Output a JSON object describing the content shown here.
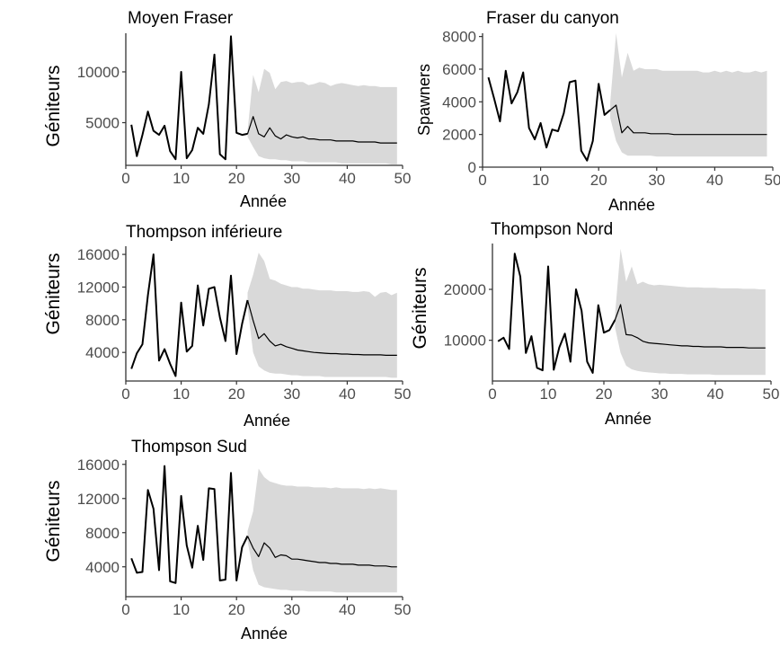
{
  "chart_data": [
    {
      "type": "line",
      "title": "Moyen Fraser",
      "xlabel": "Année",
      "ylabel": "Géniteurs",
      "xlim": [
        0,
        50
      ],
      "ylim": [
        800,
        13800
      ],
      "xticks": [
        "0",
        "10",
        "20",
        "30",
        "40",
        "50"
      ],
      "yticks": [
        "5000",
        "10000"
      ],
      "grid": false,
      "observed": {
        "x": [
          1,
          2,
          3,
          4,
          5,
          6,
          7,
          8,
          9,
          10,
          11,
          12,
          13,
          14,
          15,
          16,
          17,
          18,
          19,
          20,
          21,
          22
        ],
        "y": [
          4800,
          1700,
          3800,
          6100,
          4200,
          3800,
          4700,
          2200,
          1400,
          10000,
          1500,
          2300,
          4500,
          3900,
          6800,
          11700,
          1900,
          1400,
          13500,
          4000,
          3800,
          3900
        ]
      },
      "projection": {
        "x": [
          22,
          23,
          24,
          25,
          26,
          27,
          28,
          29,
          30,
          31,
          32,
          33,
          34,
          35,
          36,
          37,
          38,
          39,
          40,
          41,
          42,
          43,
          44,
          45,
          46,
          47,
          48,
          49
        ],
        "median": [
          3900,
          5600,
          3900,
          3600,
          4500,
          3700,
          3400,
          3800,
          3600,
          3500,
          3600,
          3400,
          3400,
          3300,
          3300,
          3300,
          3200,
          3200,
          3200,
          3200,
          3100,
          3100,
          3100,
          3100,
          3000,
          3000,
          3000,
          3000
        ],
        "lower": [
          3600,
          2600,
          1700,
          1500,
          1400,
          1400,
          1300,
          1300,
          1200,
          1200,
          1200,
          1100,
          1100,
          1100,
          1100,
          1100,
          1100,
          1000,
          1000,
          1000,
          1000,
          1000,
          1000,
          1000,
          1000,
          1000,
          900,
          900
        ],
        "upper": [
          4200,
          9700,
          8000,
          10300,
          9900,
          8300,
          9000,
          9100,
          8900,
          9000,
          9000,
          8700,
          8800,
          9000,
          8900,
          8600,
          8800,
          8900,
          8800,
          8700,
          8600,
          8700,
          8600,
          8600,
          8500,
          8500,
          8500,
          8500
        ]
      }
    },
    {
      "type": "line",
      "title": "Fraser du canyon",
      "xlabel": "Année",
      "ylabel": "Spawners",
      "xlim": [
        0,
        50
      ],
      "ylim": [
        0,
        8200
      ],
      "xticks": [
        "0",
        "10",
        "20",
        "30",
        "40",
        "50"
      ],
      "yticks": [
        "0",
        "2000",
        "4000",
        "6000",
        "8000"
      ],
      "grid": false,
      "observed": {
        "x": [
          1,
          2,
          3,
          4,
          5,
          6,
          7,
          8,
          9,
          10,
          11,
          12,
          13,
          14,
          15,
          16,
          17,
          18,
          19,
          20,
          21,
          22
        ],
        "y": [
          5500,
          4200,
          2800,
          5900,
          3900,
          4600,
          5800,
          2400,
          1700,
          2700,
          1200,
          2300,
          2200,
          3300,
          5200,
          5300,
          1000,
          400,
          1600,
          5100,
          3200,
          3500
        ]
      },
      "projection": {
        "x": [
          22,
          23,
          24,
          25,
          26,
          27,
          28,
          29,
          30,
          31,
          32,
          33,
          34,
          35,
          36,
          37,
          38,
          39,
          40,
          41,
          42,
          43,
          44,
          45,
          46,
          47,
          48,
          49
        ],
        "median": [
          3500,
          3800,
          2100,
          2500,
          2100,
          2100,
          2100,
          2050,
          2050,
          2050,
          2050,
          2000,
          2000,
          2000,
          2000,
          2000,
          2000,
          2000,
          2000,
          2000,
          2000,
          2000,
          2000,
          2000,
          2000,
          2000,
          2000,
          2000
        ],
        "lower": [
          3000,
          1600,
          900,
          700,
          700,
          700,
          700,
          700,
          650,
          650,
          650,
          650,
          650,
          650,
          650,
          650,
          650,
          650,
          650,
          650,
          650,
          650,
          650,
          650,
          650,
          650,
          650,
          650
        ],
        "upper": [
          4000,
          8200,
          5500,
          7000,
          5900,
          6100,
          6000,
          6000,
          6000,
          5900,
          5900,
          5900,
          5900,
          5900,
          5900,
          5900,
          5800,
          5800,
          5900,
          5800,
          5900,
          5800,
          5900,
          5800,
          5800,
          5900,
          5800,
          5900
        ]
      }
    },
    {
      "type": "line",
      "title": "Thompson  inférieure",
      "xlabel": "Année",
      "ylabel": "Géniteurs",
      "xlim": [
        0,
        50
      ],
      "ylim": [
        500,
        17000
      ],
      "xticks": [
        "0",
        "10",
        "20",
        "30",
        "40",
        "50"
      ],
      "yticks": [
        "4000",
        "8000",
        "12000",
        "16000"
      ],
      "grid": false,
      "observed": {
        "x": [
          1,
          2,
          3,
          4,
          5,
          6,
          7,
          8,
          9,
          10,
          11,
          12,
          13,
          14,
          15,
          16,
          17,
          18,
          19,
          20,
          21,
          22
        ],
        "y": [
          2000,
          3900,
          5000,
          11000,
          16000,
          3000,
          4400,
          2600,
          1100,
          10100,
          4100,
          4800,
          12200,
          7300,
          11800,
          12000,
          8300,
          5400,
          13400,
          3800,
          7500,
          10400
        ]
      },
      "projection": {
        "x": [
          22,
          23,
          24,
          25,
          26,
          27,
          28,
          29,
          30,
          31,
          32,
          33,
          34,
          35,
          36,
          37,
          38,
          39,
          40,
          41,
          42,
          43,
          44,
          45,
          46,
          47,
          48,
          49
        ],
        "median": [
          10400,
          7900,
          5700,
          6300,
          5400,
          4800,
          5000,
          4700,
          4500,
          4300,
          4200,
          4100,
          4000,
          3950,
          3900,
          3850,
          3850,
          3800,
          3800,
          3750,
          3750,
          3700,
          3700,
          3700,
          3700,
          3650,
          3650,
          3650
        ],
        "lower": [
          9500,
          4000,
          2300,
          1800,
          1500,
          1400,
          1400,
          1300,
          1200,
          1200,
          1100,
          1100,
          1100,
          1100,
          1000,
          1000,
          1000,
          1000,
          1000,
          1000,
          1000,
          1000,
          1000,
          1000,
          1000,
          1000,
          900,
          900
        ],
        "upper": [
          11300,
          13500,
          16200,
          15200,
          13000,
          12800,
          12400,
          12200,
          12000,
          12000,
          11800,
          11800,
          11700,
          11600,
          11600,
          11600,
          11500,
          11500,
          11500,
          11400,
          11400,
          11500,
          11400,
          10800,
          11300,
          11400,
          11000,
          11300
        ]
      }
    },
    {
      "type": "line",
      "title": "Thompson  Nord",
      "xlabel": "Année",
      "ylabel": "Géniteurs",
      "xlim": [
        0,
        50
      ],
      "ylim": [
        2000,
        29000
      ],
      "xticks": [
        "0",
        "10",
        "20",
        "30",
        "40",
        "50"
      ],
      "yticks": [
        "10000",
        "20000"
      ],
      "grid": false,
      "observed": {
        "x": [
          1,
          2,
          3,
          4,
          5,
          6,
          7,
          8,
          9,
          10,
          11,
          12,
          13,
          14,
          15,
          16,
          17,
          18,
          19,
          20,
          21,
          22
        ],
        "y": [
          9800,
          10500,
          8300,
          27000,
          22500,
          7500,
          10800,
          4600,
          4100,
          24500,
          4200,
          8600,
          11300,
          5800,
          20000,
          15800,
          5800,
          3600,
          16900,
          11500,
          12000,
          14000
        ]
      },
      "projection": {
        "x": [
          22,
          23,
          24,
          25,
          26,
          27,
          28,
          29,
          30,
          31,
          32,
          33,
          34,
          35,
          36,
          37,
          38,
          39,
          40,
          41,
          42,
          43,
          44,
          45,
          46,
          47,
          48,
          49
        ],
        "median": [
          14000,
          17000,
          11100,
          11000,
          10500,
          9800,
          9500,
          9400,
          9300,
          9200,
          9100,
          9000,
          8900,
          8900,
          8800,
          8800,
          8700,
          8700,
          8700,
          8700,
          8600,
          8600,
          8600,
          8600,
          8500,
          8500,
          8500,
          8500
        ],
        "lower": [
          12500,
          7500,
          5000,
          4300,
          4000,
          3800,
          3700,
          3600,
          3500,
          3500,
          3400,
          3400,
          3400,
          3300,
          3300,
          3300,
          3300,
          3300,
          3200,
          3200,
          3200,
          3200,
          3200,
          3200,
          3200,
          3200,
          3200,
          3200
        ],
        "upper": [
          15000,
          28000,
          21500,
          24500,
          21000,
          21500,
          21000,
          20800,
          20900,
          20800,
          20700,
          20600,
          20500,
          20400,
          20400,
          20400,
          20300,
          20300,
          20300,
          20200,
          20200,
          20200,
          20200,
          20100,
          20100,
          20100,
          20000,
          20000
        ]
      }
    },
    {
      "type": "line",
      "title": "Thompson  Sud",
      "xlabel": "Année",
      "ylabel": "Géniteurs",
      "xlim": [
        0,
        50
      ],
      "ylim": [
        500,
        16500
      ],
      "xticks": [
        "0",
        "10",
        "20",
        "30",
        "40",
        "50"
      ],
      "yticks": [
        "4000",
        "8000",
        "12000",
        "16000"
      ],
      "grid": false,
      "observed": {
        "x": [
          1,
          2,
          3,
          4,
          5,
          6,
          7,
          8,
          9,
          10,
          11,
          12,
          13,
          14,
          15,
          16,
          17,
          18,
          19,
          20,
          21,
          22
        ],
        "y": [
          5000,
          3300,
          3400,
          13000,
          10800,
          3600,
          15800,
          2300,
          2100,
          12300,
          6500,
          3900,
          8800,
          4800,
          13200,
          13100,
          2400,
          2500,
          15000,
          2400,
          6300,
          7600
        ]
      },
      "projection": {
        "x": [
          22,
          23,
          24,
          25,
          26,
          27,
          28,
          29,
          30,
          31,
          32,
          33,
          34,
          35,
          36,
          37,
          38,
          39,
          40,
          41,
          42,
          43,
          44,
          45,
          46,
          47,
          48,
          49
        ],
        "median": [
          7600,
          6200,
          5200,
          6800,
          6200,
          5100,
          5400,
          5300,
          4900,
          4900,
          4800,
          4700,
          4600,
          4500,
          4500,
          4400,
          4400,
          4300,
          4300,
          4300,
          4200,
          4200,
          4200,
          4100,
          4100,
          4100,
          4000,
          4000
        ],
        "lower": [
          7000,
          3600,
          1900,
          1600,
          1500,
          1400,
          1300,
          1300,
          1200,
          1200,
          1200,
          1100,
          1100,
          1100,
          1100,
          1100,
          1000,
          1000,
          1000,
          1000,
          1000,
          1000,
          1000,
          1000,
          1000,
          1000,
          1000,
          1000
        ],
        "upper": [
          8200,
          10500,
          15500,
          14500,
          14000,
          13800,
          13600,
          13500,
          13500,
          13400,
          13400,
          13400,
          13300,
          13300,
          13300,
          13200,
          13300,
          13200,
          13200,
          13200,
          13200,
          13100,
          13200,
          13100,
          13200,
          13100,
          13000,
          13000
        ]
      }
    }
  ],
  "colors": {
    "ribbon": "#d9d9d9",
    "line": "#000000",
    "axis": "#333333",
    "tick_text": "#4d4d4d",
    "background": "#ffffff"
  }
}
